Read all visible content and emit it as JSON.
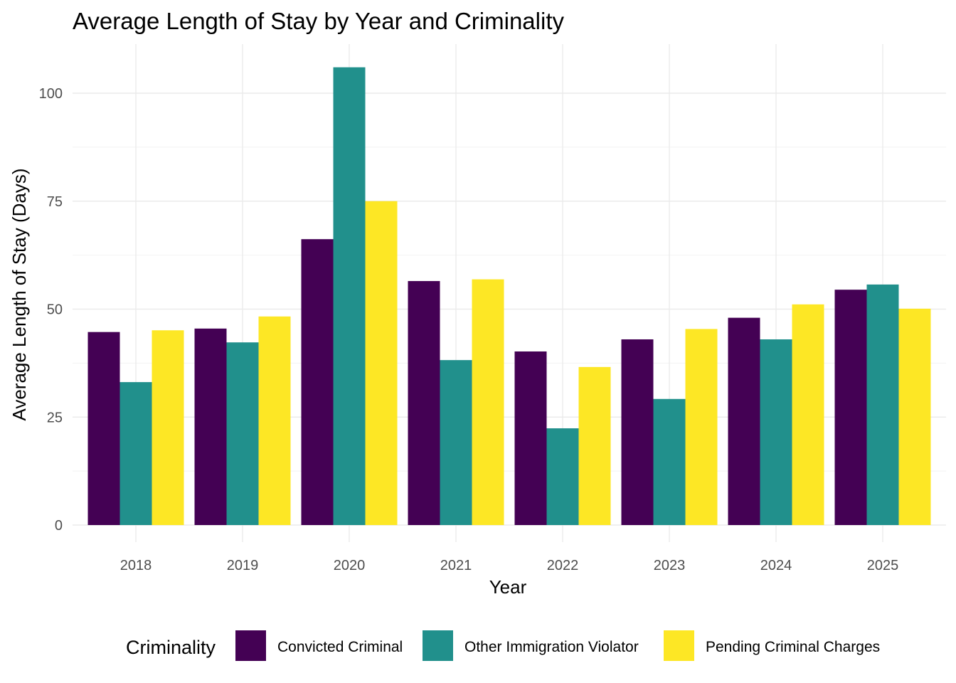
{
  "chart_data": {
    "type": "bar",
    "title": "Average Length of Stay by Year and Criminality",
    "xlabel": "Year",
    "ylabel": "Average Length of Stay (Days)",
    "categories": [
      "2018",
      "2019",
      "2020",
      "2021",
      "2022",
      "2023",
      "2024",
      "2025"
    ],
    "series": [
      {
        "name": "Convicted Criminal",
        "color": "#440154",
        "values": [
          44.7,
          45.5,
          66.2,
          56.5,
          40.2,
          43.0,
          48.0,
          54.5
        ]
      },
      {
        "name": "Other Immigration Violator",
        "color": "#21908C",
        "values": [
          33.1,
          42.3,
          106.0,
          38.2,
          22.4,
          29.2,
          43.0,
          55.7
        ]
      },
      {
        "name": "Pending Criminal Charges",
        "color": "#FDE725",
        "values": [
          45.1,
          48.3,
          75.0,
          56.9,
          36.6,
          45.4,
          51.1,
          50.1
        ]
      }
    ],
    "ylim": [
      0,
      110
    ],
    "yticks": [
      0,
      25,
      50,
      75,
      100
    ],
    "grid": true,
    "legend": {
      "title": "Criminality",
      "position": "bottom"
    }
  }
}
